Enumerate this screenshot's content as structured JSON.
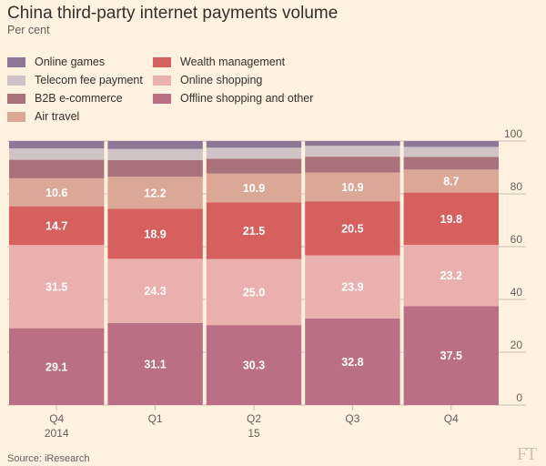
{
  "header": {
    "title": "China third-party internet payments volume",
    "subtitle": "Per cent"
  },
  "colors": {
    "background": "#fff1e0",
    "Online games": "#8e7898",
    "Telecom fee payment": "#cfc3c6",
    "B2B e-commerce": "#a9727a",
    "Air travel": "#dba898",
    "Wealth management": "#d5605e",
    "Online shopping": "#eab0ae",
    "Offline shopping and other": "#bb6f85",
    "gridline": "#c8bfb6",
    "label_text": "#ffffff",
    "axis_text": "#66605c"
  },
  "chart_data": {
    "type": "bar",
    "stacked": true,
    "title": "China third-party internet payments volume",
    "subtitle": "Per cent",
    "ylim": [
      0,
      100
    ],
    "yticks": [
      0,
      20,
      40,
      60,
      80,
      100
    ],
    "y_axis_side": "right",
    "grid": true,
    "legend_placement": "top-left",
    "categories": [
      "Q4",
      "Q1",
      "Q2",
      "Q3",
      "Q4"
    ],
    "category_years": [
      "2014",
      "",
      "15",
      "",
      ""
    ],
    "series": [
      {
        "name": "Offline shopping and other",
        "values": [
          29.1,
          31.1,
          30.3,
          32.8,
          37.5
        ],
        "labeled": true
      },
      {
        "name": "Online shopping",
        "values": [
          31.5,
          24.3,
          25.0,
          23.9,
          23.2
        ],
        "labeled": true
      },
      {
        "name": "Wealth management",
        "values": [
          14.7,
          18.9,
          21.5,
          20.5,
          19.8
        ],
        "labeled": true
      },
      {
        "name": "Air travel",
        "values": [
          10.6,
          12.2,
          10.9,
          10.9,
          8.7
        ],
        "labeled": true
      },
      {
        "name": "B2B e-commerce",
        "values": [
          7.0,
          6.3,
          5.6,
          6.0,
          4.8
        ],
        "labeled": false
      },
      {
        "name": "Telecom fee payment",
        "values": [
          4.3,
          4.2,
          4.2,
          4.1,
          3.8
        ],
        "labeled": false
      },
      {
        "name": "Online games",
        "values": [
          2.8,
          3.0,
          2.5,
          1.8,
          2.2
        ],
        "labeled": false
      }
    ]
  },
  "legend": {
    "items": [
      {
        "label": "Online games",
        "color": "#8e7898"
      },
      {
        "label": "Telecom fee payment",
        "color": "#cfc3c6"
      },
      {
        "label": "B2B e-commerce",
        "color": "#a9727a"
      },
      {
        "label": "Air travel",
        "color": "#dba898"
      },
      {
        "label": "Wealth management",
        "color": "#d5605e"
      },
      {
        "label": "Online shopping",
        "color": "#eab0ae"
      },
      {
        "label": "Offline shopping and other",
        "color": "#bb6f85"
      }
    ]
  },
  "footer": {
    "source": "Source: iResearch",
    "logo": "FT"
  }
}
